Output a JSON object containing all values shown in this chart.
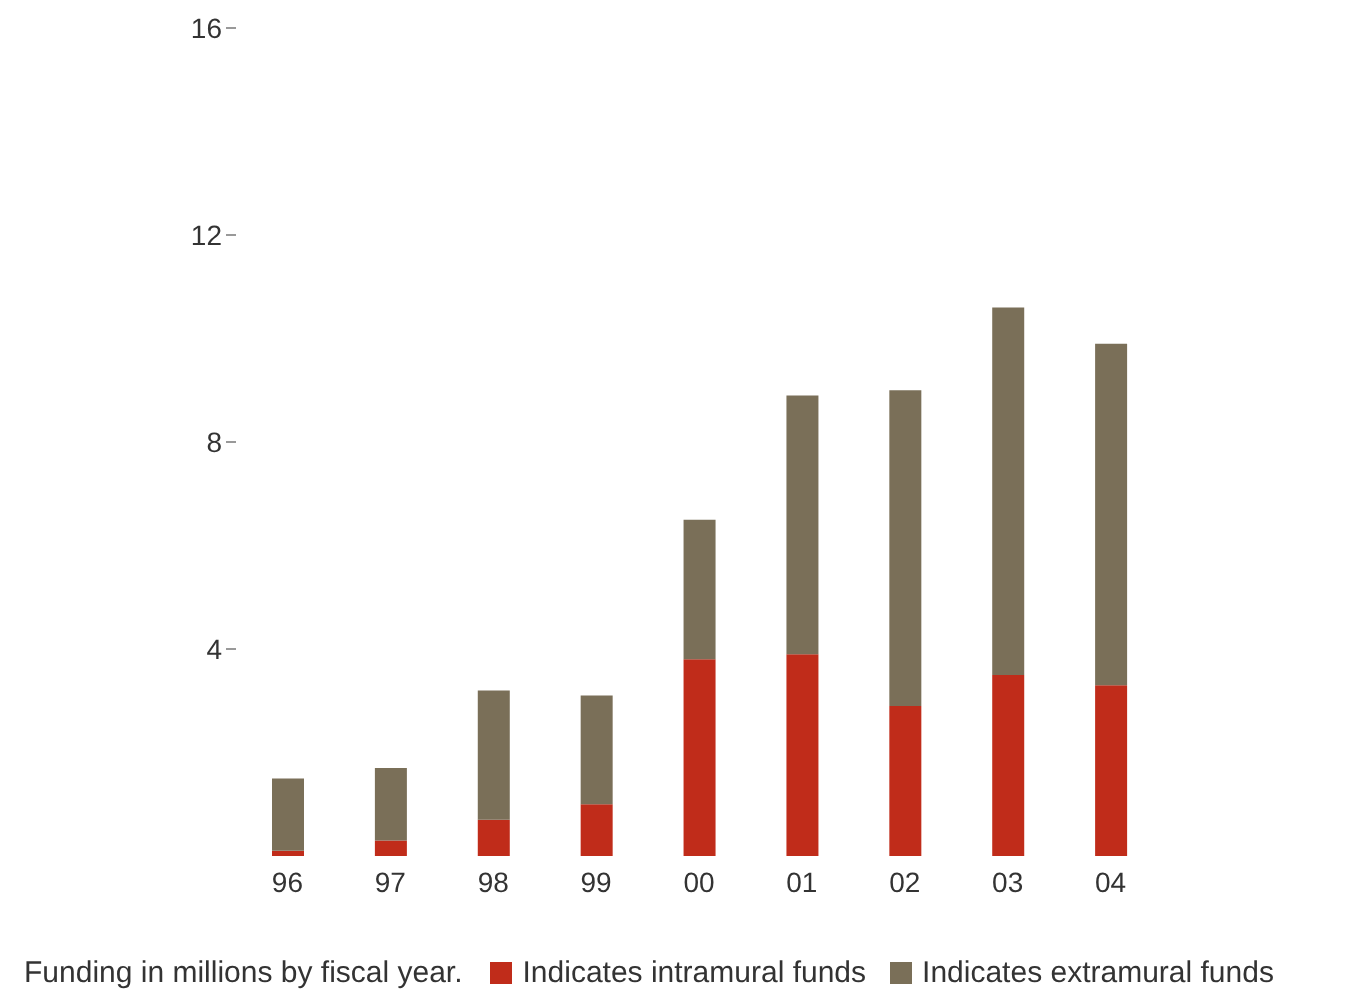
{
  "chart_data": {
    "type": "bar",
    "stacked": true,
    "categories": [
      "96",
      "97",
      "98",
      "99",
      "00",
      "01",
      "02",
      "03",
      "04"
    ],
    "series": [
      {
        "name": "Indicates intramural funds",
        "color": "#c02c1a",
        "values": [
          0.1,
          0.3,
          0.7,
          1.0,
          3.8,
          3.9,
          2.9,
          3.5,
          3.3
        ]
      },
      {
        "name": "Indicates extramural funds",
        "color": "#7a6f58",
        "values": [
          1.4,
          1.4,
          2.5,
          2.1,
          2.7,
          5.0,
          6.1,
          7.1,
          6.6
        ]
      }
    ],
    "ylim": [
      0,
      16
    ],
    "yticks": [
      4,
      8,
      12,
      16
    ],
    "grid": false,
    "legend": "bottom",
    "annotations": [
      "Funding in millions by fiscal year."
    ]
  }
}
